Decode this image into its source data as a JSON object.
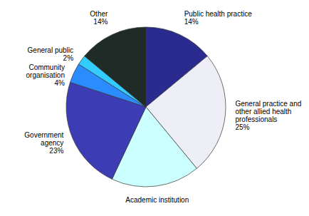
{
  "chart_data": {
    "type": "pie",
    "categories": [
      "Public health practice",
      "General practice and other allied health professionals",
      "Academic institution",
      "Government agency",
      "Community organisation",
      "General public",
      "Other"
    ],
    "values": [
      14,
      25,
      18,
      23,
      4,
      2,
      14
    ],
    "value_labels": [
      "14%",
      "25%",
      null,
      "23%",
      "4%",
      "2%",
      "14%"
    ],
    "colors": [
      "#2b2b8f",
      "#eeeef6",
      "#ccffff",
      "#3c3cb4",
      "#2b8cff",
      "#33ccff",
      "#1f2b26"
    ],
    "data_labels": true
  }
}
